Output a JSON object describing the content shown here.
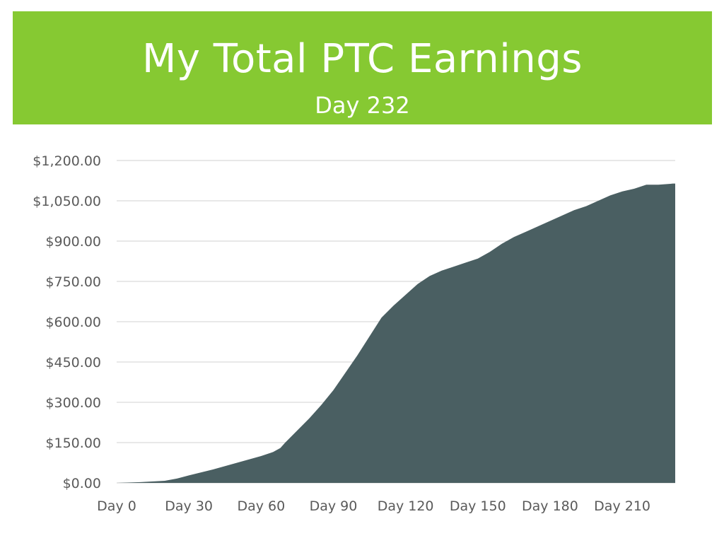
{
  "title": "My Total PTC Earnings",
  "subtitle": "Day 232",
  "colors": {
    "banner": "#86c932",
    "title_text": "#ffffff",
    "area_fill": "#4a5f62",
    "gridline": "#d0d0d0",
    "tick_text": "#5a5a5a"
  },
  "chart_data": {
    "type": "area",
    "title": "My Total PTC Earnings",
    "subtitle": "Day 232",
    "xlabel": "",
    "ylabel": "",
    "xlim": [
      0,
      232
    ],
    "ylim": [
      0,
      1200
    ],
    "grid": true,
    "y_tick_labels": [
      "$0.00",
      "$150.00",
      "$300.00",
      "$450.00",
      "$600.00",
      "$750.00",
      "$900.00",
      "$1,050.00",
      "$1,200.00"
    ],
    "y_tick_values": [
      0,
      150,
      300,
      450,
      600,
      750,
      900,
      1050,
      1200
    ],
    "x_tick_labels": [
      "Day 0",
      "Day 30",
      "Day 60",
      "Day 90",
      "Day 120",
      "Day 150",
      "Day 180",
      "Day 210"
    ],
    "x_tick_values": [
      0,
      30,
      60,
      90,
      120,
      150,
      180,
      210
    ],
    "series": [
      {
        "x": [
          0,
          10,
          20,
          25,
          30,
          40,
          50,
          60,
          65,
          68,
          70,
          75,
          80,
          85,
          90,
          95,
          100,
          105,
          110,
          115,
          120,
          125,
          130,
          135,
          140,
          145,
          150,
          155,
          160,
          165,
          170,
          175,
          180,
          185,
          190,
          195,
          200,
          205,
          210,
          215,
          220,
          225,
          230,
          231,
          232
        ],
        "y": [
          0,
          3,
          8,
          16,
          28,
          50,
          75,
          100,
          115,
          130,
          150,
          195,
          240,
          290,
          345,
          410,
          475,
          545,
          615,
          660,
          700,
          740,
          770,
          790,
          805,
          820,
          835,
          860,
          890,
          915,
          935,
          955,
          975,
          995,
          1015,
          1030,
          1050,
          1070,
          1085,
          1095,
          1110,
          1110,
          1113,
          1114,
          1114
        ]
      }
    ]
  }
}
